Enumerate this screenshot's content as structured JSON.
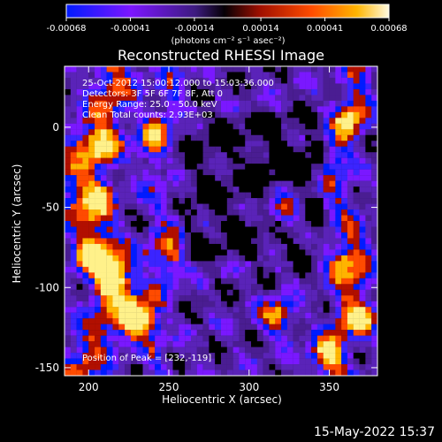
{
  "chart_data": {
    "type": "heatmap",
    "title": "Reconstructed RHESSI Image",
    "xlabel": "Heliocentric X (arcsec)",
    "ylabel": "Heliocentric Y (arcsec)",
    "xlim": [
      185,
      380
    ],
    "ylim": [
      -155,
      38
    ],
    "x_ticks": [
      {
        "value": 200,
        "label": "200"
      },
      {
        "value": 250,
        "label": "250"
      },
      {
        "value": 300,
        "label": "300"
      },
      {
        "value": 350,
        "label": "350"
      }
    ],
    "y_ticks": [
      {
        "value": 0,
        "label": "0"
      },
      {
        "value": -50,
        "label": "-50"
      },
      {
        "value": -100,
        "label": "-100"
      },
      {
        "value": -150,
        "label": "-150"
      }
    ],
    "colorbar": {
      "min": -0.00068,
      "max": 0.00068,
      "ticks": [
        {
          "value": -0.00068,
          "label": "-0.00068"
        },
        {
          "value": -0.00041,
          "label": "-0.00041"
        },
        {
          "value": -0.00014,
          "label": "-0.00014"
        },
        {
          "value": 0.00014,
          "label": "0.00014"
        },
        {
          "value": 0.00041,
          "label": "0.00041"
        },
        {
          "value": 0.00068,
          "label": "0.00068"
        }
      ],
      "unit_label": "(photons cm⁻² s⁻¹ asec⁻²)",
      "colors": [
        "#001bff",
        "#3b24ff",
        "#7a18ff",
        "#4a1d92",
        "#5a23b8",
        "#000000",
        "#b10f00",
        "#ff4b00",
        "#ffb400",
        "#fff18a"
      ]
    },
    "annotations": {
      "time_range": "25-Oct-2012 15:00:12.000 to 15:03:36.000",
      "detectors": "Detectors: 3F 5F 6F 7F 8F, Att 0",
      "energy_range": "Energy Range: 25.0 - 50.0 keV",
      "clean_counts": "Clean   Total counts: 2.93E+03",
      "peak_position": "Position of Peak = [232,-119]"
    },
    "peak": {
      "x": 232,
      "y": -119
    },
    "hotspots": [
      {
        "x": 230,
        "y": -119,
        "strength": 1.0
      },
      {
        "x": 214,
        "y": -94,
        "strength": 0.75
      },
      {
        "x": 201,
        "y": -80,
        "strength": 0.68
      },
      {
        "x": 206,
        "y": -44,
        "strength": 0.6
      },
      {
        "x": 210,
        "y": -12,
        "strength": 0.58
      },
      {
        "x": 239,
        "y": -5,
        "strength": 0.48
      },
      {
        "x": 245,
        "y": -78,
        "strength": 0.38
      },
      {
        "x": 317,
        "y": -118,
        "strength": 0.62
      },
      {
        "x": 322,
        "y": -52,
        "strength": 0.52
      },
      {
        "x": 358,
        "y": -86,
        "strength": 0.64
      },
      {
        "x": 370,
        "y": -119,
        "strength": 0.72
      },
      {
        "x": 362,
        "y": 4,
        "strength": 0.48
      },
      {
        "x": 348,
        "y": -142,
        "strength": 0.55
      }
    ]
  },
  "footer": {
    "timestamp": "15-May-2022 15:37"
  }
}
